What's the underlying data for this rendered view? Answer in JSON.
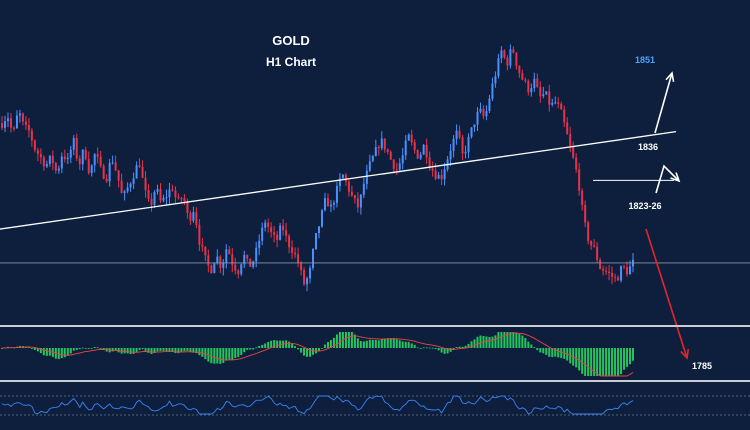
{
  "chart_data": {
    "type": "candlestick",
    "title": "GOLD",
    "subtitle": "H1 Chart",
    "colors": {
      "background": "#0d1f3c",
      "bull": "#4a90ff",
      "bear": "#e8324a",
      "trendline": "#ffffff",
      "panel_border": "#c8ccd4",
      "macd_bars": "#22c55e",
      "macd_signal": "#ef4444",
      "rsi_line": "#3b82f6",
      "target_up": "#4da3ff",
      "arrow_down": "#e8242a"
    },
    "y_range": [
      1775,
      1860
    ],
    "price_path": [
      1838,
      1840,
      1835,
      1841,
      1837,
      1836,
      1832,
      1830,
      1828,
      1830,
      1826,
      1831,
      1829,
      1834,
      1828,
      1832,
      1826,
      1831,
      1827,
      1825,
      1830,
      1826,
      1820,
      1823,
      1826,
      1829,
      1822,
      1818,
      1823,
      1819,
      1821,
      1823,
      1819,
      1821,
      1815,
      1818,
      1810,
      1806,
      1803,
      1807,
      1804,
      1809,
      1805,
      1803,
      1807,
      1804,
      1806,
      1811,
      1815,
      1812,
      1810,
      1814,
      1810,
      1808,
      1805,
      1800,
      1802,
      1810,
      1815,
      1820,
      1818,
      1822,
      1826,
      1823,
      1820,
      1818,
      1824,
      1828,
      1831,
      1834,
      1832,
      1829,
      1827,
      1830,
      1835,
      1832,
      1830,
      1833,
      1828,
      1826,
      1825,
      1829,
      1833,
      1836,
      1830,
      1834,
      1838,
      1841,
      1839,
      1845,
      1850,
      1855,
      1852,
      1856,
      1851,
      1848,
      1846,
      1848,
      1844,
      1845,
      1842,
      1843,
      1840,
      1835,
      1830,
      1825,
      1815,
      1810,
      1808,
      1804,
      1803,
      1802,
      1801,
      1804,
      1803,
      1805
    ],
    "levels": [
      {
        "label": "1851",
        "value": 1851,
        "kind": "target-up"
      },
      {
        "label": "1836",
        "value": 1836,
        "kind": "resistance"
      },
      {
        "label": "1823-26",
        "value": 1824.5,
        "kind": "support"
      },
      {
        "label": "1785",
        "value": 1785,
        "kind": "target-down"
      }
    ],
    "current_price": 1805,
    "trendline": {
      "start": 1813,
      "end": 1836
    },
    "indicators": [
      "MACD",
      "RSI"
    ]
  }
}
